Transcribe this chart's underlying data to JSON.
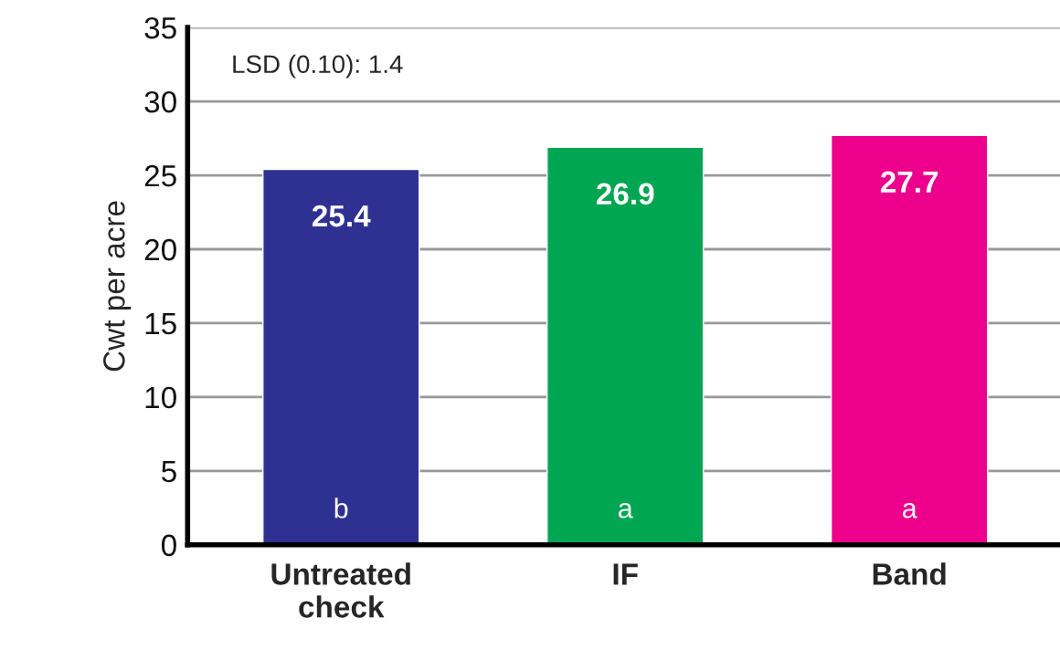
{
  "chart_data": {
    "type": "bar",
    "ylabel": "Cwt per acre",
    "categories": [
      "Untreated\ncheck",
      "IF",
      "Band"
    ],
    "values": [
      25.4,
      26.9,
      27.7
    ],
    "colors": [
      "#2e3192",
      "#00a651",
      "#ec008c"
    ],
    "ylim": [
      0,
      35
    ],
    "yticks": [
      0,
      5,
      10,
      15,
      20,
      25,
      30,
      35
    ],
    "grid": "y",
    "data_labels": true,
    "annotations": [
      "LSD (0.10): 1.4",
      "b",
      "a",
      "a"
    ]
  }
}
